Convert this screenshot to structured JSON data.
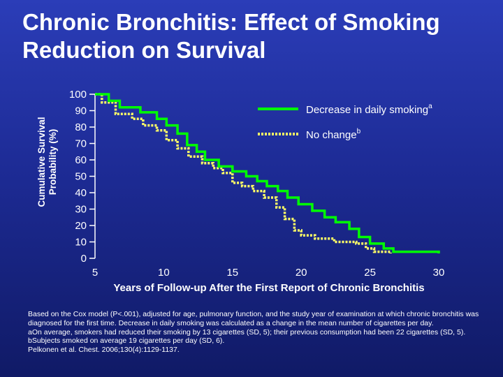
{
  "title_line1": "Chronic Bronchitis: Effect of Smoking",
  "title_line2": "Reduction on Survival",
  "chart_data": {
    "type": "line",
    "title": "Chronic Bronchitis: Effect of Smoking Reduction on Survival",
    "ylabel_line1": "Cumulative Survival",
    "ylabel_line2": "Probability (%)",
    "xlabel": "Years of Follow-up After the First Report of Chronic Bronchitis",
    "xlim": [
      5,
      30
    ],
    "ylim": [
      0,
      100
    ],
    "x_ticks": [
      "5",
      "10",
      "15",
      "20",
      "25",
      "30"
    ],
    "y_ticks": [
      "100",
      "90",
      "80",
      "70",
      "60",
      "50",
      "40",
      "30",
      "20",
      "10",
      "0"
    ],
    "legend_position": "top-right",
    "series": [
      {
        "name": "Decrease in daily smoking",
        "superscript": "a",
        "style": "solid",
        "color": "#00ff00",
        "x": [
          5,
          6,
          6.8,
          8.3,
          9.5,
          10.2,
          11.0,
          11.7,
          12.4,
          13.0,
          14.0,
          15.0,
          16.0,
          16.8,
          17.5,
          18.3,
          19.0,
          19.8,
          20.8,
          21.7,
          22.5,
          23.5,
          24.2,
          25.0,
          26.0,
          26.7,
          30.0
        ],
        "y": [
          100,
          96,
          92,
          89,
          85,
          81,
          76,
          69,
          65,
          60,
          56,
          53,
          50,
          47,
          44,
          41,
          37,
          33,
          29,
          25,
          22,
          18,
          13,
          9,
          6,
          4,
          3
        ]
      },
      {
        "name": "No change",
        "superscript": "b",
        "style": "dotted",
        "color": "#ffff66",
        "x": [
          5,
          5.5,
          6.5,
          7.7,
          8.5,
          9.5,
          10.2,
          11.0,
          11.8,
          12.8,
          13.6,
          14.3,
          15.0,
          15.7,
          16.5,
          17.3,
          18.2,
          18.8,
          19.5,
          20.0,
          21.0,
          22.4,
          24.0,
          24.7,
          25.3,
          26.5
        ],
        "y": [
          100,
          95,
          88,
          85,
          81,
          78,
          72,
          67,
          62,
          58,
          55,
          52,
          46,
          44,
          41,
          37,
          31,
          24,
          17,
          14,
          12,
          10,
          9,
          6,
          4,
          3
        ]
      }
    ]
  },
  "footnotes": {
    "line1": "Based on the Cox model (P<.001), adjusted for age, pulmonary function, and the study year of examination at which chronic bronchitis was diagnosed for the first time. Decrease in daily smoking was calculated as a change in the mean number of cigarettes per day.",
    "line2": "aOn average, smokers had reduced their smoking by 13 cigarettes (SD, 5); their previous consumption had been 22 cigarettes (SD, 5). bSubjects smoked on average 19 cigarettes per day (SD, 6).",
    "line3": "Pelkonen et al. Chest. 2006;130(4):1129-1137."
  },
  "colors": {
    "background_top": "#2b3db8",
    "background_bottom": "#101a66",
    "text": "#ffffff",
    "decrease_line": "#00ff00",
    "nochange_line": "#ffff66"
  }
}
